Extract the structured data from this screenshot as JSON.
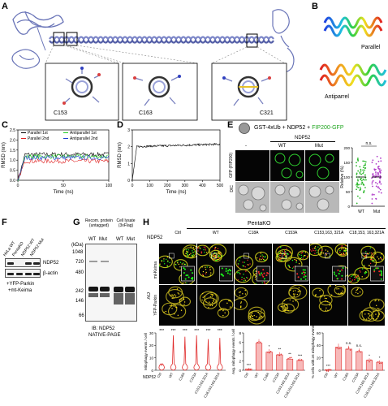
{
  "panels": {
    "A": {
      "letter": "A",
      "insets": [
        "C153",
        "C163",
        "C321"
      ]
    },
    "B": {
      "letter": "B",
      "labels": [
        "Parallel",
        "Antiparrel"
      ]
    },
    "C": {
      "letter": "C",
      "ylabel": "RMSD (nm)",
      "xlabel": "Time (ns)",
      "legend": [
        "Parallel 1st",
        "Antiparallel 1st",
        "Parallel 2nd",
        "Antiparallel 2nd"
      ],
      "colors": [
        "#000000",
        "#22cc22",
        "#e02020",
        "#1f3fd0"
      ],
      "xticks": [
        "0",
        "50",
        "100"
      ],
      "yticks": [
        "0.0",
        "0.5",
        "1.0",
        "1.5",
        "2.0",
        "2.5"
      ]
    },
    "D": {
      "letter": "D",
      "ylabel": "RMSD (nm)",
      "xlabel": "Time (ns)",
      "xticks": [
        "0",
        "100",
        "200",
        "300",
        "400",
        "500"
      ],
      "yticks": [
        "0",
        "1",
        "2",
        "3"
      ]
    },
    "E": {
      "letter": "E",
      "assay_prefix": "GST-4xUb + NDP52 + ",
      "assay_green": "FIP200-GFP",
      "ndp52": "NDP52",
      "cols": [
        "-",
        "WT",
        "Mut"
      ],
      "rows": [
        "GFP (FIP200)",
        "DIC"
      ],
      "ns": "n.s.",
      "ylabel": "Relative (%)",
      "yticks": [
        "0",
        "50",
        "100",
        "150",
        "200"
      ],
      "xcats": [
        "WT",
        "Mut"
      ]
    },
    "F": {
      "letter": "F",
      "lanes": [
        "HeLa WT",
        "PentaKO",
        "NDP52 WT",
        "NDP52 Mut"
      ],
      "bands": [
        "NDP52",
        "β-actin"
      ],
      "foot1": "+YFP-Parkin",
      "foot2": "+mt-Keima"
    },
    "G": {
      "letter": "G",
      "group1": "Recom. protein (untagged)",
      "group2": "Cell lysate (3xFlag)",
      "lanes": [
        "WT",
        "Mut",
        "WT",
        "Mut"
      ],
      "kda": "(kDa)",
      "markers": [
        "1048",
        "720",
        "480",
        "242",
        "146",
        "66"
      ],
      "foot1": "IB: NDP52",
      "foot2": "NATIVE-PAGE"
    },
    "H": {
      "letter": "H",
      "header": "PentaKO",
      "ndp52": "NDP52",
      "cols": [
        "Ctrl",
        "WT",
        "C18A",
        "C153A",
        "C153,163, 321A",
        "C18,153, 163,321A"
      ],
      "rows": [
        "mt-Keima",
        "YFP-Parkin"
      ],
      "ao": "AO",
      "sig": [
        "***",
        "***",
        "***",
        "***",
        "***",
        "***"
      ],
      "violin_ylabel": "Mitophagy events / cell",
      "violin_yticks": [
        "0",
        "10",
        "20",
        "30"
      ],
      "bar1_ylabel": "Avg. mitophagy events / cell",
      "bar1_yticks": [
        "0",
        "2",
        "4",
        "6",
        "8"
      ],
      "bar2_ylabel": "% cells with ≥5 mitophagy events",
      "bar2_yticks": [
        "0",
        "20",
        "40",
        "60"
      ],
      "bar_xcats": [
        "Ctrl",
        "WT",
        "C18A",
        "C153A",
        "C153,163,321A",
        "C18,153,163,321A"
      ],
      "bar1_values": [
        0.3,
        5.8,
        3.9,
        3.3,
        2.4,
        2.1
      ],
      "bar1_sig": [
        "***",
        "",
        "*",
        "**",
        "**",
        "***"
      ],
      "bar2_values": [
        1,
        37,
        34,
        30,
        16,
        13
      ],
      "bar2_sig": [
        "***",
        "",
        "n.s.",
        "n.s.",
        "*",
        "*"
      ]
    }
  }
}
